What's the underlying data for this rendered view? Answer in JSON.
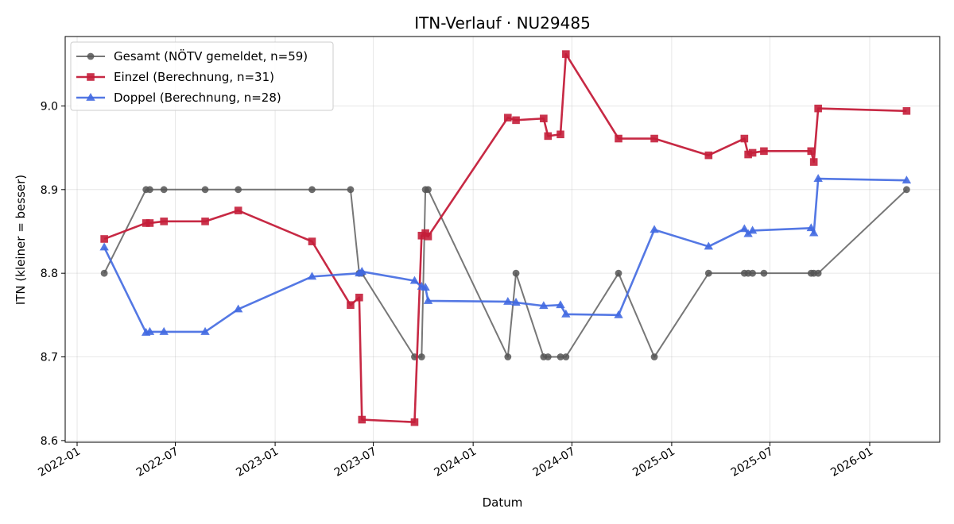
{
  "chart_data": {
    "type": "line",
    "title": "ITN-Verlauf · NU29485",
    "xlabel": "Datum",
    "ylabel": "ITN  (kleiner = besser)",
    "xlim": [
      "2021-12-10",
      "2026-05-10"
    ],
    "ylim": [
      8.598,
      9.083
    ],
    "x_ticks": [
      "2022-01",
      "2022-07",
      "2023-01",
      "2023-07",
      "2024-01",
      "2024-07",
      "2025-01",
      "2025-07",
      "2026-01"
    ],
    "y_ticks": [
      8.6,
      8.7,
      8.8,
      8.9,
      9.0
    ],
    "grid": true,
    "legend_position": "top-left",
    "series": [
      {
        "name": "Gesamt (NÖTV gemeldet, n=59)",
        "color": "#555555",
        "marker": "circle",
        "points": [
          [
            "2022-02-20",
            8.8
          ],
          [
            "2022-05-08",
            8.9
          ],
          [
            "2022-05-15",
            8.9
          ],
          [
            "2022-06-10",
            8.9
          ],
          [
            "2022-08-25",
            8.9
          ],
          [
            "2022-10-25",
            8.9
          ],
          [
            "2023-03-10",
            8.9
          ],
          [
            "2023-05-20",
            8.9
          ],
          [
            "2023-06-05",
            8.8
          ],
          [
            "2023-06-10",
            8.8
          ],
          [
            "2023-09-15",
            8.7
          ],
          [
            "2023-09-28",
            8.7
          ],
          [
            "2023-10-05",
            8.9
          ],
          [
            "2023-10-10",
            8.9
          ],
          [
            "2024-03-05",
            8.7
          ],
          [
            "2024-03-20",
            8.8
          ],
          [
            "2024-05-10",
            8.7
          ],
          [
            "2024-05-18",
            8.7
          ],
          [
            "2024-06-10",
            8.7
          ],
          [
            "2024-06-20",
            8.7
          ],
          [
            "2024-09-25",
            8.8
          ],
          [
            "2024-11-30",
            8.7
          ],
          [
            "2025-03-10",
            8.8
          ],
          [
            "2025-05-15",
            8.8
          ],
          [
            "2025-05-22",
            8.8
          ],
          [
            "2025-05-30",
            8.8
          ],
          [
            "2025-06-20",
            8.8
          ],
          [
            "2025-09-15",
            8.8
          ],
          [
            "2025-09-20",
            8.8
          ],
          [
            "2025-09-28",
            8.8
          ],
          [
            "2026-03-10",
            8.9
          ]
        ]
      },
      {
        "name": "Einzel (Berechnung, n=31)",
        "color": "#c41e3a",
        "marker": "square",
        "points": [
          [
            "2022-02-20",
            8.841
          ],
          [
            "2022-05-08",
            8.86
          ],
          [
            "2022-05-15",
            8.86
          ],
          [
            "2022-06-10",
            8.862
          ],
          [
            "2022-08-25",
            8.862
          ],
          [
            "2022-10-25",
            8.875
          ],
          [
            "2023-03-10",
            8.838
          ],
          [
            "2023-05-20",
            8.762
          ],
          [
            "2023-06-05",
            8.771
          ],
          [
            "2023-06-10",
            8.625
          ],
          [
            "2023-09-15",
            8.622
          ],
          [
            "2023-09-28",
            8.845
          ],
          [
            "2023-10-05",
            8.848
          ],
          [
            "2023-10-10",
            8.844
          ],
          [
            "2024-03-05",
            8.986
          ],
          [
            "2024-03-20",
            8.983
          ],
          [
            "2024-05-10",
            8.985
          ],
          [
            "2024-05-18",
            8.964
          ],
          [
            "2024-06-10",
            8.966
          ],
          [
            "2024-06-20",
            9.062
          ],
          [
            "2024-09-25",
            8.961
          ],
          [
            "2024-11-30",
            8.961
          ],
          [
            "2025-03-10",
            8.941
          ],
          [
            "2025-05-15",
            8.961
          ],
          [
            "2025-05-22",
            8.942
          ],
          [
            "2025-05-30",
            8.944
          ],
          [
            "2025-06-20",
            8.946
          ],
          [
            "2025-09-15",
            8.946
          ],
          [
            "2025-09-20",
            8.933
          ],
          [
            "2025-09-28",
            8.997
          ],
          [
            "2026-03-10",
            8.994
          ]
        ]
      },
      {
        "name": "Doppel (Berechnung, n=28)",
        "color": "#4169e1",
        "marker": "triangle",
        "points": [
          [
            "2022-02-20",
            8.831
          ],
          [
            "2022-05-08",
            8.729
          ],
          [
            "2022-05-15",
            8.73
          ],
          [
            "2022-06-10",
            8.73
          ],
          [
            "2022-08-25",
            8.73
          ],
          [
            "2022-10-25",
            8.757
          ],
          [
            "2023-03-10",
            8.796
          ],
          [
            "2023-06-05",
            8.8
          ],
          [
            "2023-06-10",
            8.802
          ],
          [
            "2023-09-15",
            8.791
          ],
          [
            "2023-09-28",
            8.784
          ],
          [
            "2023-10-05",
            8.783
          ],
          [
            "2023-10-10",
            8.767
          ],
          [
            "2024-03-05",
            8.766
          ],
          [
            "2024-03-20",
            8.765
          ],
          [
            "2024-05-10",
            8.761
          ],
          [
            "2024-06-10",
            8.762
          ],
          [
            "2024-06-20",
            8.751
          ],
          [
            "2024-09-25",
            8.75
          ],
          [
            "2024-11-30",
            8.852
          ],
          [
            "2025-03-10",
            8.832
          ],
          [
            "2025-05-15",
            8.853
          ],
          [
            "2025-05-22",
            8.847
          ],
          [
            "2025-05-30",
            8.851
          ],
          [
            "2025-09-15",
            8.854
          ],
          [
            "2025-09-20",
            8.848
          ],
          [
            "2025-09-28",
            8.913
          ],
          [
            "2026-03-10",
            8.911
          ]
        ]
      }
    ]
  }
}
